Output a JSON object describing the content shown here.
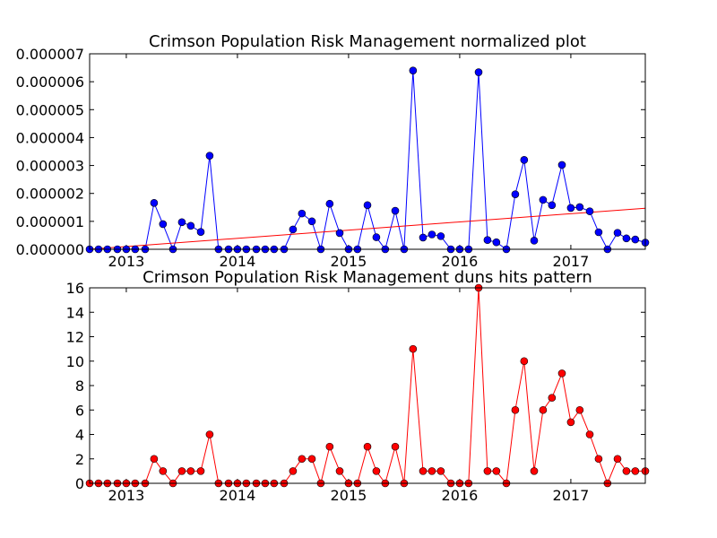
{
  "chart_data": [
    {
      "type": "line",
      "title": "Crimson Population Risk Management normalized plot",
      "xlabel": "",
      "ylabel": "",
      "xlim": [
        2012.67,
        2017.67
      ],
      "ylim": [
        0,
        7e-06
      ],
      "x_ticks": [
        2013,
        2014,
        2015,
        2016,
        2017
      ],
      "x_tick_labels": [
        "2013",
        "2014",
        "2015",
        "2016",
        "2017"
      ],
      "y_ticks": [
        0,
        1e-06,
        2e-06,
        3e-06,
        4e-06,
        5e-06,
        6e-06,
        7e-06
      ],
      "y_tick_labels": [
        "0.000000",
        "0.000001",
        "0.000002",
        "0.000003",
        "0.000004",
        "0.000005",
        "0.000006",
        "0.000007"
      ],
      "grid": false,
      "series_color": "#0000ff",
      "trend_color": "#ff0000",
      "x": [
        2012.67,
        2012.75,
        2012.83,
        2012.92,
        2013.0,
        2013.08,
        2013.17,
        2013.25,
        2013.33,
        2013.42,
        2013.5,
        2013.58,
        2013.67,
        2013.75,
        2013.83,
        2013.92,
        2014.0,
        2014.08,
        2014.17,
        2014.25,
        2014.33,
        2014.42,
        2014.5,
        2014.58,
        2014.67,
        2014.75,
        2014.83,
        2014.92,
        2015.0,
        2015.08,
        2015.17,
        2015.25,
        2015.33,
        2015.42,
        2015.5,
        2015.58,
        2015.67,
        2015.75,
        2015.83,
        2015.92,
        2016.0,
        2016.08,
        2016.17,
        2016.25,
        2016.33,
        2016.42,
        2016.5,
        2016.58,
        2016.67,
        2016.75,
        2016.83,
        2016.92,
        2017.0,
        2017.08,
        2017.17,
        2017.25,
        2017.33,
        2017.42,
        2017.5,
        2017.58,
        2017.67
      ],
      "values": [
        0,
        0,
        0,
        0,
        0,
        0,
        0,
        1.66e-06,
        9e-07,
        0,
        9.7e-07,
        8.4e-07,
        6.2e-07,
        3.35e-06,
        0,
        0,
        0,
        0,
        0,
        0,
        0,
        0,
        7.1e-07,
        1.28e-06,
        1e-06,
        0,
        1.63e-06,
        5.8e-07,
        0,
        0,
        1.58e-06,
        4.3e-07,
        0,
        1.38e-06,
        0,
        6.4e-06,
        4.2e-07,
        5.3e-07,
        4.7e-07,
        0,
        0,
        0,
        6.34e-06,
        3.3e-07,
        2.5e-07,
        0,
        1.97e-06,
        3.2e-06,
        3.1e-07,
        1.77e-06,
        1.58e-06,
        3.02e-06,
        1.48e-06,
        1.51e-06,
        1.36e-06,
        6.1e-07,
        0,
        5.9e-07,
        3.9e-07,
        3.5e-07,
        2.4e-07
      ],
      "trend": {
        "x": [
          2012.67,
          2017.67
        ],
        "y": [
          0,
          1.47e-06
        ]
      }
    },
    {
      "type": "line",
      "title": "Crimson Population Risk Management duns hits pattern",
      "xlabel": "",
      "ylabel": "",
      "xlim": [
        2012.67,
        2017.67
      ],
      "ylim": [
        0,
        16
      ],
      "x_ticks": [
        2013,
        2014,
        2015,
        2016,
        2017
      ],
      "x_tick_labels": [
        "2013",
        "2014",
        "2015",
        "2016",
        "2017"
      ],
      "y_ticks": [
        0,
        2,
        4,
        6,
        8,
        10,
        12,
        14,
        16
      ],
      "y_tick_labels": [
        "0",
        "2",
        "4",
        "6",
        "8",
        "10",
        "12",
        "14",
        "16"
      ],
      "grid": false,
      "series_color": "#ff0000",
      "x": [
        2012.67,
        2012.75,
        2012.83,
        2012.92,
        2013.0,
        2013.08,
        2013.17,
        2013.25,
        2013.33,
        2013.42,
        2013.5,
        2013.58,
        2013.67,
        2013.75,
        2013.83,
        2013.92,
        2014.0,
        2014.08,
        2014.17,
        2014.25,
        2014.33,
        2014.42,
        2014.5,
        2014.58,
        2014.67,
        2014.75,
        2014.83,
        2014.92,
        2015.0,
        2015.08,
        2015.17,
        2015.25,
        2015.33,
        2015.42,
        2015.5,
        2015.58,
        2015.67,
        2015.75,
        2015.83,
        2015.92,
        2016.0,
        2016.08,
        2016.17,
        2016.25,
        2016.33,
        2016.42,
        2016.5,
        2016.58,
        2016.67,
        2016.75,
        2016.83,
        2016.92,
        2017.0,
        2017.08,
        2017.17,
        2017.25,
        2017.33,
        2017.42,
        2017.5,
        2017.58,
        2017.67
      ],
      "values": [
        0,
        0,
        0,
        0,
        0,
        0,
        0,
        2,
        1,
        0,
        1,
        1,
        1,
        4,
        0,
        0,
        0,
        0,
        0,
        0,
        0,
        0,
        1,
        2,
        2,
        0,
        3,
        1,
        0,
        0,
        3,
        1,
        0,
        3,
        0,
        11,
        1,
        1,
        1,
        0,
        0,
        0,
        16,
        1,
        1,
        0,
        6,
        10,
        1,
        6,
        7,
        9,
        5,
        6,
        4,
        2,
        0,
        2,
        1,
        1,
        1
      ]
    }
  ]
}
